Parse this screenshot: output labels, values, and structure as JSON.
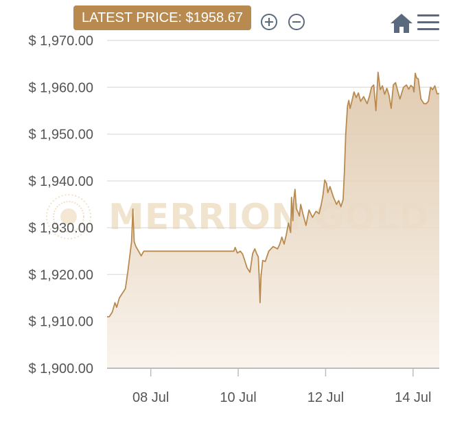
{
  "header": {
    "latest_price_label": "LATEST PRICE: $1958.67",
    "zoom_in": "zoom-in-icon",
    "zoom_out": "zoom-out-icon",
    "home": "home-icon",
    "menu": "menu-icon"
  },
  "watermark": {
    "text": "MERRION GOLD"
  },
  "colors": {
    "line": "#b98a4f",
    "fill_top": "#dcc3a4",
    "fill_bottom": "#f9f3ec",
    "grid": "#e2e2e2",
    "badge": "#b98a4f",
    "icon": "#5a6a7e"
  },
  "chart_data": {
    "type": "area",
    "title": "",
    "xlabel": "",
    "ylabel": "",
    "ylim": [
      1900,
      1970
    ],
    "yticks": [
      1900,
      1910,
      1920,
      1930,
      1940,
      1950,
      1960,
      1970
    ],
    "ytick_labels": [
      "$ 1,900.00",
      "$ 1,910.00",
      "$ 1,920.00",
      "$ 1,930.00",
      "$ 1,940.00",
      "$ 1,950.00",
      "$ 1,960.00",
      "$ 1,970.00"
    ],
    "xlim": [
      7.0,
      14.6
    ],
    "xticks": [
      8,
      10,
      12,
      14
    ],
    "xtick_labels": [
      "08 Jul",
      "10 Jul",
      "12 Jul",
      "14 Jul"
    ],
    "grid": true,
    "series": [
      {
        "x": [
          7.0,
          7.05,
          7.12,
          7.18,
          7.22,
          7.28,
          7.35,
          7.42,
          7.48,
          7.52,
          7.56,
          7.59,
          7.62,
          7.66,
          7.72,
          7.78,
          7.84,
          7.9,
          8.0,
          8.5,
          9.0,
          9.5,
          9.9,
          9.93,
          9.98,
          10.05,
          10.1,
          10.15,
          10.2,
          10.27,
          10.33,
          10.38,
          10.42,
          10.46,
          10.48,
          10.5,
          10.52,
          10.56,
          10.62,
          10.7,
          10.8,
          10.9,
          10.95,
          11.0,
          11.05,
          11.1,
          11.15,
          11.2,
          11.22,
          11.25,
          11.27,
          11.3,
          11.33,
          11.36,
          11.4,
          11.43,
          11.48,
          11.55,
          11.62,
          11.7,
          11.78,
          11.85,
          11.9,
          11.94,
          11.98,
          12.02,
          12.05,
          12.1,
          12.18,
          12.25,
          12.3,
          12.35,
          12.4,
          12.43,
          12.46,
          12.5,
          12.53,
          12.56,
          12.6,
          12.65,
          12.7,
          12.75,
          12.8,
          12.87,
          12.95,
          13.0,
          13.05,
          13.1,
          13.15,
          13.2,
          13.25,
          13.3,
          13.35,
          13.4,
          13.45,
          13.5,
          13.55,
          13.6,
          13.65,
          13.7,
          13.78,
          13.85,
          13.9,
          13.95,
          14.0,
          14.02,
          14.05,
          14.08,
          14.12,
          14.18,
          14.25,
          14.3,
          14.35,
          14.4,
          14.45,
          14.5,
          14.55,
          14.6
        ],
        "values": [
          1911,
          1911,
          1912,
          1914,
          1913,
          1915,
          1916,
          1917,
          1921,
          1924,
          1927,
          1934,
          1927,
          1926,
          1925,
          1924,
          1925,
          1925,
          1925,
          1925,
          1925,
          1925,
          1925,
          1925.8,
          1924.6,
          1925,
          1924.4,
          1923,
          1921.5,
          1920.5,
          1924.5,
          1925.5,
          1924.5,
          1923.8,
          1919.5,
          1914,
          1919.5,
          1923,
          1922.8,
          1925,
          1926,
          1925.5,
          1926.5,
          1928,
          1926.5,
          1928.5,
          1931,
          1929,
          1936.5,
          1931.5,
          1935.8,
          1938.2,
          1934,
          1933.5,
          1932.5,
          1935,
          1933,
          1930.5,
          1933.8,
          1932.2,
          1933.5,
          1933,
          1935,
          1937,
          1940.2,
          1939.5,
          1937.5,
          1938.8,
          1936.5,
          1935,
          1935.8,
          1934.5,
          1936,
          1942,
          1950,
          1956,
          1957.2,
          1955.5,
          1957,
          1959,
          1957.8,
          1958.8,
          1957,
          1958,
          1956.5,
          1958,
          1960,
          1960.5,
          1955,
          1963.2,
          1959.5,
          1960.3,
          1958.5,
          1959.8,
          1958.3,
          1955.5,
          1960.5,
          1961,
          1959.2,
          1957.5,
          1960,
          1960.5,
          1959.6,
          1960.4,
          1960,
          1959,
          1963,
          1962,
          1961.8,
          1957.5,
          1956.5,
          1956.5,
          1957,
          1960,
          1959.5,
          1960.3,
          1958.6,
          1958.67
        ]
      }
    ]
  }
}
